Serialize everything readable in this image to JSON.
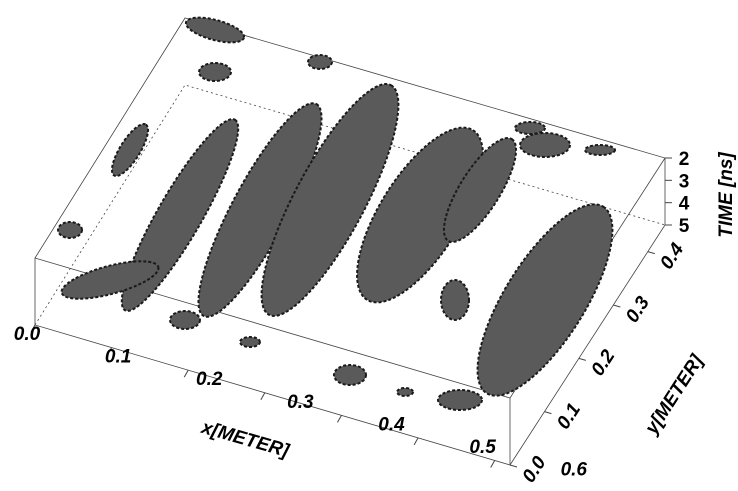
{
  "chart_data": {
    "type": "volume",
    "x_label": "x[METER]",
    "y_label": "y[METER]",
    "z_label": "TIME [ns]",
    "xlim": [
      0,
      0.62
    ],
    "xticks": [
      {
        "value": 0,
        "label": "0.0"
      },
      0.1,
      0.2,
      0.3,
      0.4,
      0.5,
      0.6
    ],
    "ylim": [
      0,
      0.45
    ],
    "yticks": [
      {
        "value": 0,
        "label": "0.0"
      },
      0.1,
      0.2,
      0.3,
      0.4
    ],
    "zlim": [
      2,
      5
    ],
    "zticks": [
      2,
      3,
      4,
      5
    ],
    "color": "#5a5a5a"
  }
}
